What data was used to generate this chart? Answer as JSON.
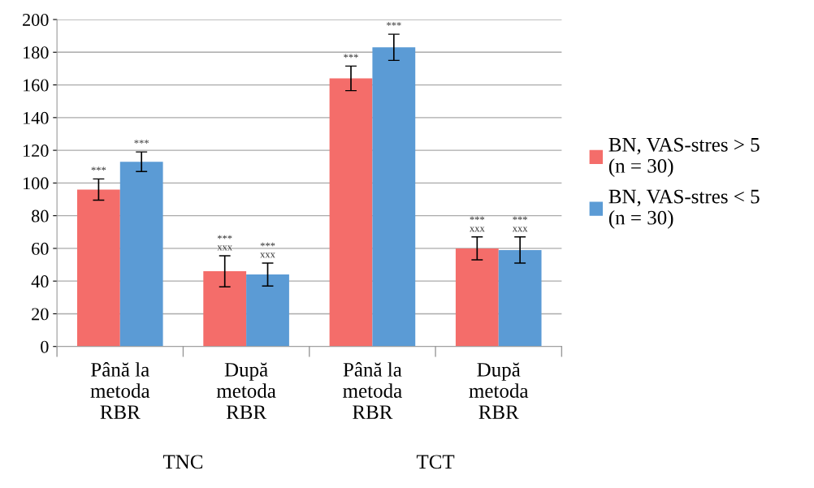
{
  "chart_data": {
    "type": "bar",
    "categories": [
      "Până la\nmetoda\nRBR",
      "După\nmetoda\nRBR",
      "Până la\nmetoda\nRBR",
      "După\nmetoda\nRBR"
    ],
    "series": [
      {
        "name": "BN, VAS-stres > 5\n(n = 30)",
        "color": "#f46d6a",
        "values": [
          96,
          46,
          164,
          60
        ],
        "errors": [
          6.5,
          9.5,
          7.5,
          7
        ],
        "value_labels": [
          "***",
          "***\nxxx",
          "***",
          "***\nxxx"
        ]
      },
      {
        "name": "BN, VAS-stres < 5\n(n = 30)",
        "color": "#5b9bd5",
        "values": [
          113,
          44,
          183,
          59
        ],
        "errors": [
          6,
          7,
          8,
          8
        ],
        "value_labels": [
          "***",
          "***\nxxx",
          "***",
          "***\nxxx"
        ]
      }
    ],
    "annotations": [
      "TNC",
      "TCT"
    ],
    "ylim": [
      0,
      200
    ],
    "yticks": [
      0,
      20,
      40,
      60,
      80,
      100,
      120,
      140,
      160,
      180,
      200
    ],
    "grid": "y",
    "legend": "right"
  }
}
